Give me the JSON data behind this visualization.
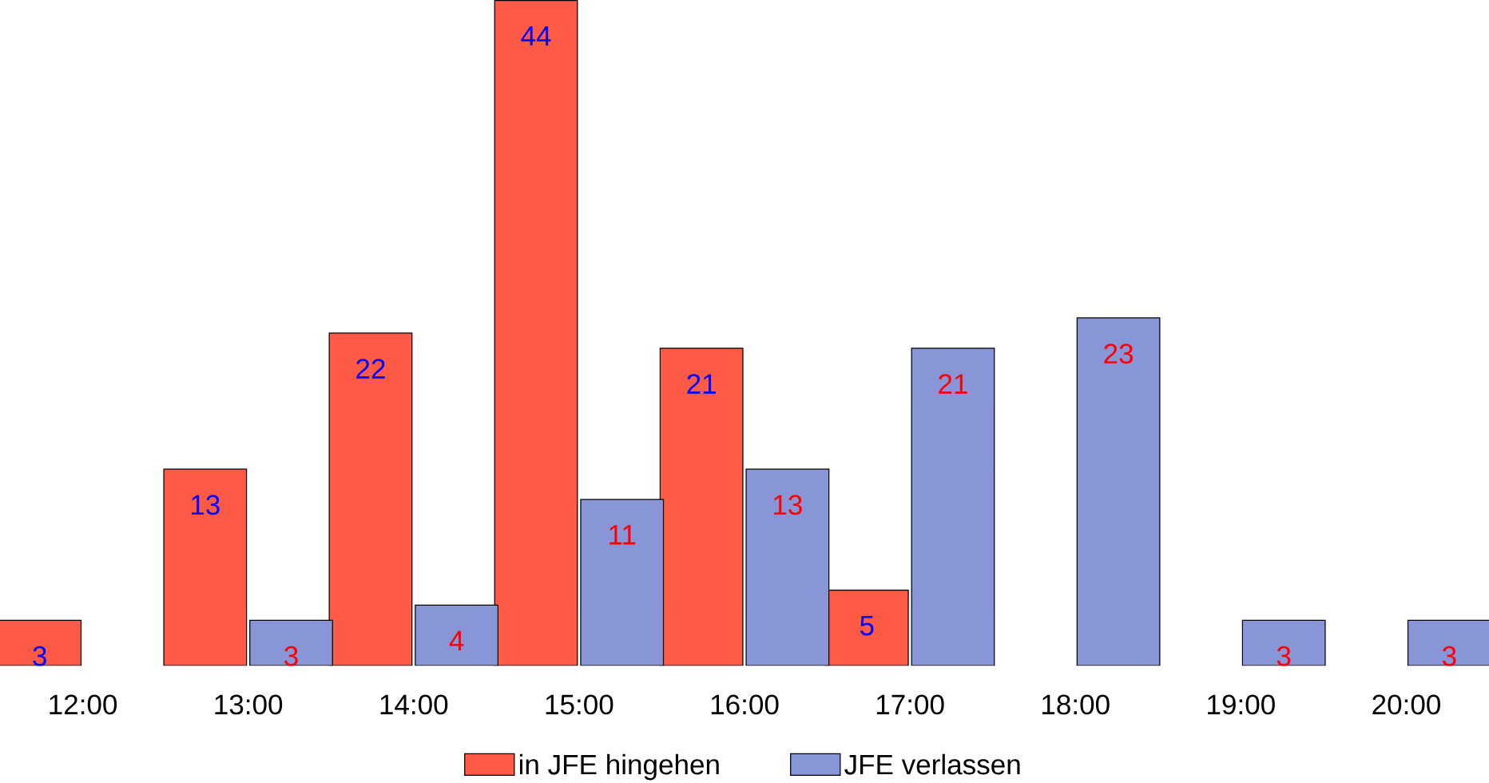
{
  "chart_data": {
    "type": "bar",
    "categories": [
      "12:00",
      "13:00",
      "14:00",
      "15:00",
      "16:00",
      "17:00",
      "18:00",
      "19:00",
      "20:00"
    ],
    "series": [
      {
        "name": "in JFE hingehen",
        "color": "#ff5a45",
        "values": [
          3,
          13,
          22,
          44,
          21,
          5,
          null,
          null,
          null
        ]
      },
      {
        "name": "JFE verlassen",
        "color": "#8896d8",
        "values": [
          null,
          3,
          4,
          11,
          13,
          21,
          23,
          3,
          3
        ]
      }
    ],
    "data_labels": true,
    "legend": "bottom"
  }
}
